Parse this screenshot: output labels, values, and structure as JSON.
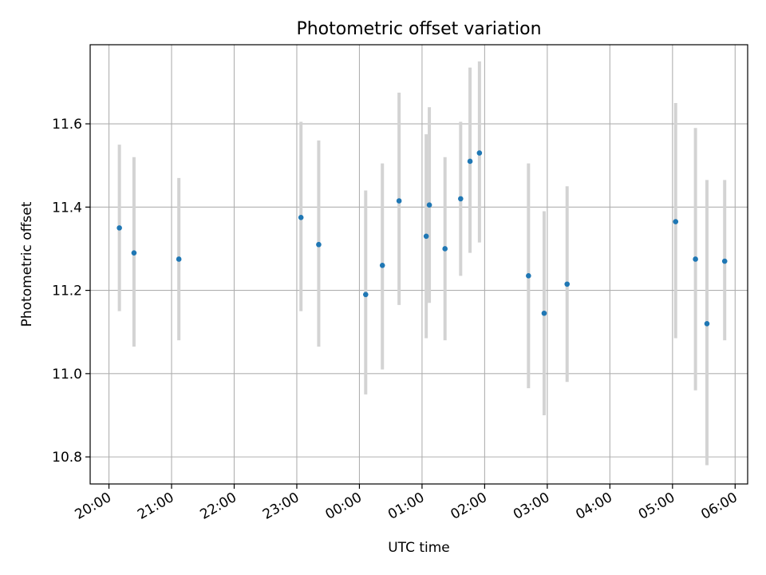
{
  "chart_data": {
    "type": "scatter",
    "title": "Photometric offset variation",
    "xlabel": "UTC time",
    "ylabel": "Photometric offset",
    "x_ticks": [
      "20:00",
      "21:00",
      "22:00",
      "23:00",
      "00:00",
      "01:00",
      "02:00",
      "03:00",
      "04:00",
      "05:00",
      "06:00"
    ],
    "y_ticks": [
      "10.8",
      "11.0",
      "11.2",
      "11.4",
      "11.6"
    ],
    "x_range_hours": [
      19.7,
      30.2
    ],
    "ylim": [
      10.735,
      11.79
    ],
    "grid": true,
    "marker_color": "#1f77b4",
    "errorbar_color": "#d3d3d3",
    "points": [
      {
        "t": "20:10",
        "y": 11.35,
        "lo": 11.15,
        "hi": 11.55
      },
      {
        "t": "20:24",
        "y": 11.29,
        "lo": 11.065,
        "hi": 11.52
      },
      {
        "t": "21:07",
        "y": 11.275,
        "lo": 11.08,
        "hi": 11.47
      },
      {
        "t": "23:04",
        "y": 11.375,
        "lo": 11.15,
        "hi": 11.605
      },
      {
        "t": "23:21",
        "y": 11.31,
        "lo": 11.065,
        "hi": 11.56
      },
      {
        "t": "00:06",
        "y": 11.19,
        "lo": 10.95,
        "hi": 11.44
      },
      {
        "t": "00:22",
        "y": 11.26,
        "lo": 11.01,
        "hi": 11.505
      },
      {
        "t": "00:38",
        "y": 11.415,
        "lo": 11.165,
        "hi": 11.675
      },
      {
        "t": "01:04",
        "y": 11.33,
        "lo": 11.085,
        "hi": 11.575
      },
      {
        "t": "01:07",
        "y": 11.405,
        "lo": 11.17,
        "hi": 11.64
      },
      {
        "t": "01:22",
        "y": 11.3,
        "lo": 11.08,
        "hi": 11.52
      },
      {
        "t": "01:37",
        "y": 11.42,
        "lo": 11.235,
        "hi": 11.605
      },
      {
        "t": "01:46",
        "y": 11.51,
        "lo": 11.29,
        "hi": 11.735
      },
      {
        "t": "01:55",
        "y": 11.53,
        "lo": 11.315,
        "hi": 11.75
      },
      {
        "t": "02:42",
        "y": 11.235,
        "lo": 10.965,
        "hi": 11.505
      },
      {
        "t": "02:57",
        "y": 11.145,
        "lo": 10.9,
        "hi": 11.39
      },
      {
        "t": "03:19",
        "y": 11.215,
        "lo": 10.98,
        "hi": 11.45
      },
      {
        "t": "05:03",
        "y": 11.365,
        "lo": 11.085,
        "hi": 11.65
      },
      {
        "t": "05:22",
        "y": 11.275,
        "lo": 10.96,
        "hi": 11.59
      },
      {
        "t": "05:33",
        "y": 11.12,
        "lo": 10.78,
        "hi": 11.465
      },
      {
        "t": "05:50",
        "y": 11.27,
        "lo": 11.08,
        "hi": 11.465
      }
    ]
  }
}
